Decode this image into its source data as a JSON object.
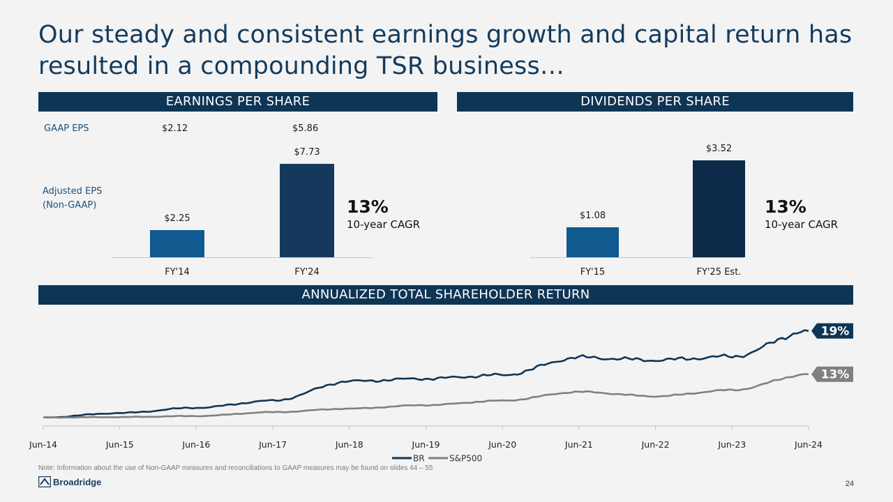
{
  "title": "Our steady and consistent earnings growth and capital return has resulted in a compounding TSR business…",
  "eps": {
    "header": "EARNINGS PER SHARE",
    "gaap_label": "GAAP EPS",
    "adj_label_1": "Adjusted EPS",
    "adj_label_2": "(Non-GAAP)",
    "gaap_values": [
      "$2.12",
      "$5.86"
    ],
    "cagr_value": "13%",
    "cagr_label": "10-year CAGR"
  },
  "dps": {
    "header": "DIVIDENDS PER SHARE",
    "cagr_value": "13%",
    "cagr_label": "10-year CAGR"
  },
  "tsr": {
    "header": "ANNUALIZED TOTAL SHAREHOLDER RETURN"
  },
  "note": "Note: Information about the use of Non-GAAP measures and reconciliations to GAAP measures may be found on slides 44 – 55",
  "page_number": "24",
  "logo_text": "Broadridge",
  "colors": {
    "navy": "#0f3555",
    "bar_light": "#105a8f",
    "bar_dark_eps": "#14395d",
    "bar_dark_dps": "#0c2a47",
    "br_line": "#0f3555",
    "sp_line": "#808080"
  },
  "chart_data": [
    {
      "type": "bar",
      "categories": [
        "FY'14",
        "FY'24"
      ],
      "values": [
        2.25,
        7.73
      ],
      "value_labels": [
        "$2.25",
        "$7.73"
      ],
      "series": [
        {
          "name": "Adjusted EPS (Non-GAAP)",
          "values": [
            2.25,
            7.73
          ]
        }
      ]
    },
    {
      "type": "bar",
      "categories": [
        "FY'15",
        "FY'25 Est."
      ],
      "values": [
        1.08,
        3.52
      ],
      "value_labels": [
        "$1.08",
        "$3.52"
      ]
    },
    {
      "type": "line",
      "x": [
        "Jun-14",
        "Jun-15",
        "Jun-16",
        "Jun-17",
        "Jun-18",
        "Jun-19",
        "Jun-20",
        "Jun-21",
        "Jun-22",
        "Jun-23",
        "Jun-24"
      ],
      "ylim": [
        0.95,
        6.4
      ],
      "grid": false,
      "legend": "bottom",
      "series": [
        {
          "name": "BR",
          "end_label": "19%",
          "color": "#0f3555",
          "values": [
            1.0,
            1.25,
            1.55,
            1.95,
            3.05,
            3.2,
            3.4,
            4.4,
            4.25,
            4.45,
            5.9
          ]
        },
        {
          "name": "S&P500",
          "end_label": "13%",
          "color": "#808080",
          "values": [
            1.0,
            1.02,
            1.08,
            1.3,
            1.5,
            1.7,
            1.95,
            2.45,
            2.2,
            2.55,
            3.45
          ]
        }
      ]
    }
  ]
}
